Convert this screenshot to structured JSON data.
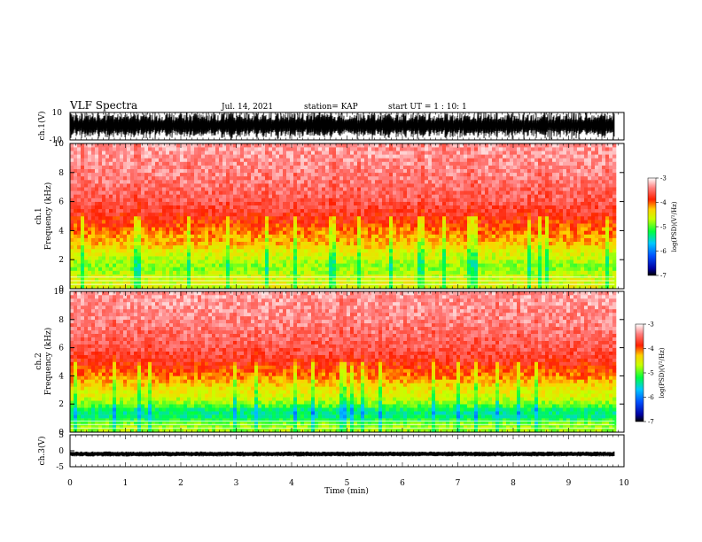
{
  "header": {
    "title": "VLF Spectra",
    "date": "Jul. 14, 2021",
    "station": "station= KAP",
    "start_ut": "start  UT =   1 : 10: 1"
  },
  "chart_data": [
    {
      "type": "line",
      "panel": "ch1-waveform",
      "ylabel": "ch.1(V)",
      "ylim": [
        -10,
        10
      ],
      "x_range_min": [
        0,
        9.83
      ],
      "description_note": "",
      "yticks": [
        "10",
        "-10"
      ]
    },
    {
      "type": "heatmap",
      "panel": "ch1-spectrogram",
      "ylabel_line1": "ch.1",
      "ylabel_line2": "Frequency  (kHz)",
      "ylim": [
        0,
        10
      ],
      "yticks": [
        "0",
        "2",
        "4",
        "6",
        "8",
        "10"
      ],
      "colorbar": {
        "label": "log(PSD)(V²/Hz)",
        "range": [
          -7,
          -3
        ],
        "ticks": [
          "-3",
          "-4",
          "-5",
          "-6",
          "-7"
        ]
      },
      "power_profile": {
        "freq_khz": [
          0.5,
          1,
          1.5,
          2,
          2.5,
          3,
          4,
          5,
          6,
          8,
          10
        ],
        "log_psd": [
          -4.6,
          -4.7,
          -4.9,
          -4.7,
          -4.6,
          -4.3,
          -4.1,
          -3.8,
          -3.6,
          -3.4,
          -3.3
        ]
      }
    },
    {
      "type": "heatmap",
      "panel": "ch2-spectrogram",
      "ylabel_line1": "ch.2",
      "ylabel_line2": "Frequency  (kHz)",
      "ylim": [
        0,
        10
      ],
      "yticks": [
        "0",
        "2",
        "4",
        "6",
        "8",
        "10"
      ],
      "colorbar": {
        "label": "log(PSD)(V²/Hz)",
        "range": [
          -7,
          -3
        ],
        "ticks": [
          "-3",
          "-4",
          "-5",
          "-6",
          "-7"
        ]
      },
      "power_profile": {
        "freq_khz": [
          0.5,
          1,
          1.5,
          2,
          2.5,
          3,
          4,
          5,
          6,
          8,
          10
        ],
        "log_psd": [
          -4.8,
          -5.3,
          -5.4,
          -4.9,
          -4.6,
          -4.5,
          -4.1,
          -3.8,
          -3.6,
          -3.4,
          -3.3
        ]
      }
    },
    {
      "type": "line",
      "panel": "ch3-waveform",
      "ylabel": "ch.3(V)",
      "ylim": [
        -5,
        5
      ],
      "yticks": [
        "5",
        "0",
        "-5"
      ]
    }
  ],
  "x_axis": {
    "label": "Time  (min)",
    "ticks": [
      "0",
      "1",
      "2",
      "3",
      "4",
      "5",
      "6",
      "7",
      "8",
      "9",
      "10"
    ],
    "xlim": [
      0,
      10
    ],
    "data_end": 9.83
  },
  "colors": {
    "axis": "#000000",
    "background": "#ffffff"
  }
}
